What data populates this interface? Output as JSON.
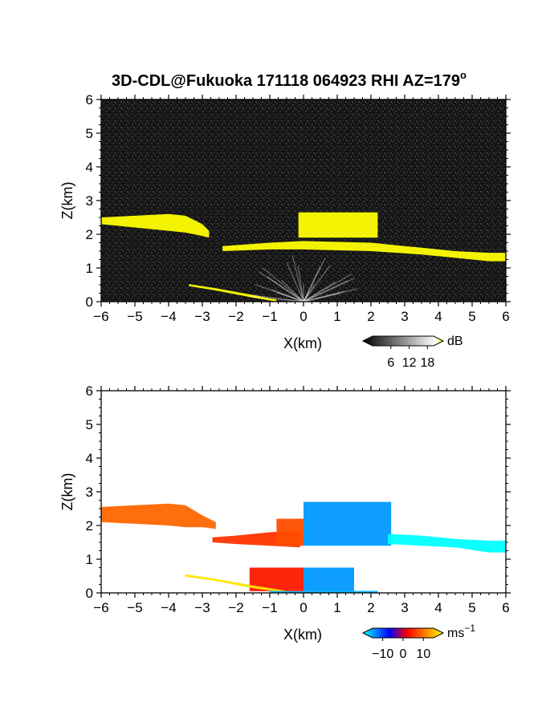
{
  "title": "3D-CDL@Fukuoka 171118 064923 RHI AZ=179",
  "title_superscript": "o",
  "chart_data": [
    {
      "type": "heatmap",
      "panel": "reflectivity",
      "xlabel": "X(km)",
      "ylabel": "Z(km)",
      "xlim": [
        -6,
        6
      ],
      "ylim": [
        0,
        6
      ],
      "xticks": [
        -6,
        -5,
        -4,
        -3,
        -2,
        -1,
        0,
        1,
        2,
        3,
        4,
        5,
        6
      ],
      "yticks": [
        0,
        1,
        2,
        3,
        4,
        5,
        6
      ],
      "background_color": "#111111",
      "colorbar": {
        "label": "dB",
        "ticks": [
          6,
          12,
          18
        ],
        "range": [
          0,
          20
        ],
        "colors": [
          "#000000",
          "#ffffff",
          "#ffff00"
        ]
      },
      "features": [
        {
          "name": "layer-left-upper",
          "kind": "layer",
          "x": [
            -6,
            -5,
            -4,
            -3.5,
            -3,
            -2.8
          ],
          "top": [
            2.5,
            2.55,
            2.6,
            2.55,
            2.3,
            2.1
          ],
          "bottom": [
            2.3,
            2.2,
            2.1,
            2.05,
            1.95,
            1.9
          ],
          "value": 20
        },
        {
          "name": "layer-mid",
          "kind": "layer",
          "x": [
            -2.4,
            -1,
            0,
            2,
            3.5,
            4.5,
            5.5,
            6
          ],
          "top": [
            1.65,
            1.75,
            1.8,
            1.75,
            1.6,
            1.5,
            1.45,
            1.45
          ],
          "bottom": [
            1.5,
            1.55,
            1.55,
            1.5,
            1.4,
            1.3,
            1.2,
            1.2
          ],
          "value": 20
        },
        {
          "name": "cell-center",
          "kind": "box",
          "x": [
            -0.15,
            2.2
          ],
          "z": [
            1.9,
            2.65
          ],
          "value": 20
        },
        {
          "name": "lower-left-streak",
          "kind": "layer",
          "x": [
            -3.4,
            -2.6,
            -1.5,
            -0.8
          ],
          "top": [
            0.52,
            0.4,
            0.2,
            0.06
          ],
          "bottom": [
            0.46,
            0.33,
            0.12,
            0.0
          ],
          "value": 20
        },
        {
          "name": "ground-fan",
          "kind": "fan",
          "x": [
            -1.8,
            1.8
          ],
          "z": [
            0,
            1.4
          ],
          "value": 10
        }
      ]
    },
    {
      "type": "heatmap",
      "panel": "velocity",
      "xlabel": "X(km)",
      "ylabel": "Z(km)",
      "xlim": [
        -6,
        6
      ],
      "ylim": [
        0,
        6
      ],
      "xticks": [
        -6,
        -5,
        -4,
        -3,
        -2,
        -1,
        0,
        1,
        2,
        3,
        4,
        5,
        6
      ],
      "yticks": [
        0,
        1,
        2,
        3,
        4,
        5,
        6
      ],
      "background_color": "#ffffff",
      "colorbar": {
        "label": "ms",
        "label_superscript": "−1",
        "ticks": [
          -10,
          0,
          10
        ],
        "range": [
          -15,
          15
        ],
        "colors": [
          "#00ffff",
          "#0000ff",
          "#ff0000",
          "#ffff00"
        ]
      },
      "features": [
        {
          "name": "layer-left-upper",
          "kind": "layer",
          "x": [
            -6,
            -5,
            -4,
            -3.5,
            -3,
            -2.6
          ],
          "top": [
            2.55,
            2.6,
            2.65,
            2.6,
            2.3,
            2.1
          ],
          "bottom": [
            2.1,
            2.05,
            2.0,
            1.95,
            1.95,
            1.9
          ],
          "value": 9
        },
        {
          "name": "layer-mid-left",
          "kind": "layer",
          "x": [
            -2.7,
            -2,
            -1,
            -0.1
          ],
          "top": [
            1.65,
            1.7,
            1.8,
            1.85
          ],
          "bottom": [
            1.5,
            1.45,
            1.4,
            1.35
          ],
          "value": 7
        },
        {
          "name": "cell-center-left",
          "kind": "box",
          "x": [
            -0.8,
            0
          ],
          "z": [
            1.4,
            2.2
          ],
          "value": 8
        },
        {
          "name": "cell-center-right",
          "kind": "box",
          "x": [
            0,
            2.6
          ],
          "z": [
            1.4,
            2.7
          ],
          "value": -11
        },
        {
          "name": "layer-right",
          "kind": "layer",
          "x": [
            2.5,
            3.5,
            4.5,
            5.5,
            6
          ],
          "top": [
            1.75,
            1.7,
            1.6,
            1.55,
            1.55
          ],
          "bottom": [
            1.45,
            1.4,
            1.35,
            1.2,
            1.2
          ],
          "value": -15
        },
        {
          "name": "lower-left",
          "kind": "box",
          "x": [
            -1.6,
            0
          ],
          "z": [
            0.05,
            0.75
          ],
          "value": 6
        },
        {
          "name": "lower-right",
          "kind": "box",
          "x": [
            0,
            1.5
          ],
          "z": [
            0.05,
            0.75
          ],
          "value": -11
        },
        {
          "name": "lower-left-streak",
          "kind": "layer",
          "x": [
            -3.5,
            -2.6,
            -1.5,
            -0.5
          ],
          "top": [
            0.55,
            0.42,
            0.22,
            0.06
          ],
          "bottom": [
            0.48,
            0.35,
            0.14,
            0.0
          ],
          "value": 14
        },
        {
          "name": "surface-streak",
          "kind": "layer",
          "x": [
            -1,
            0,
            1,
            2.2
          ],
          "top": [
            0.06,
            0.05,
            0.06,
            0.06
          ],
          "bottom": [
            0.0,
            0.0,
            0.0,
            0.0
          ],
          "value": -12
        }
      ]
    }
  ]
}
